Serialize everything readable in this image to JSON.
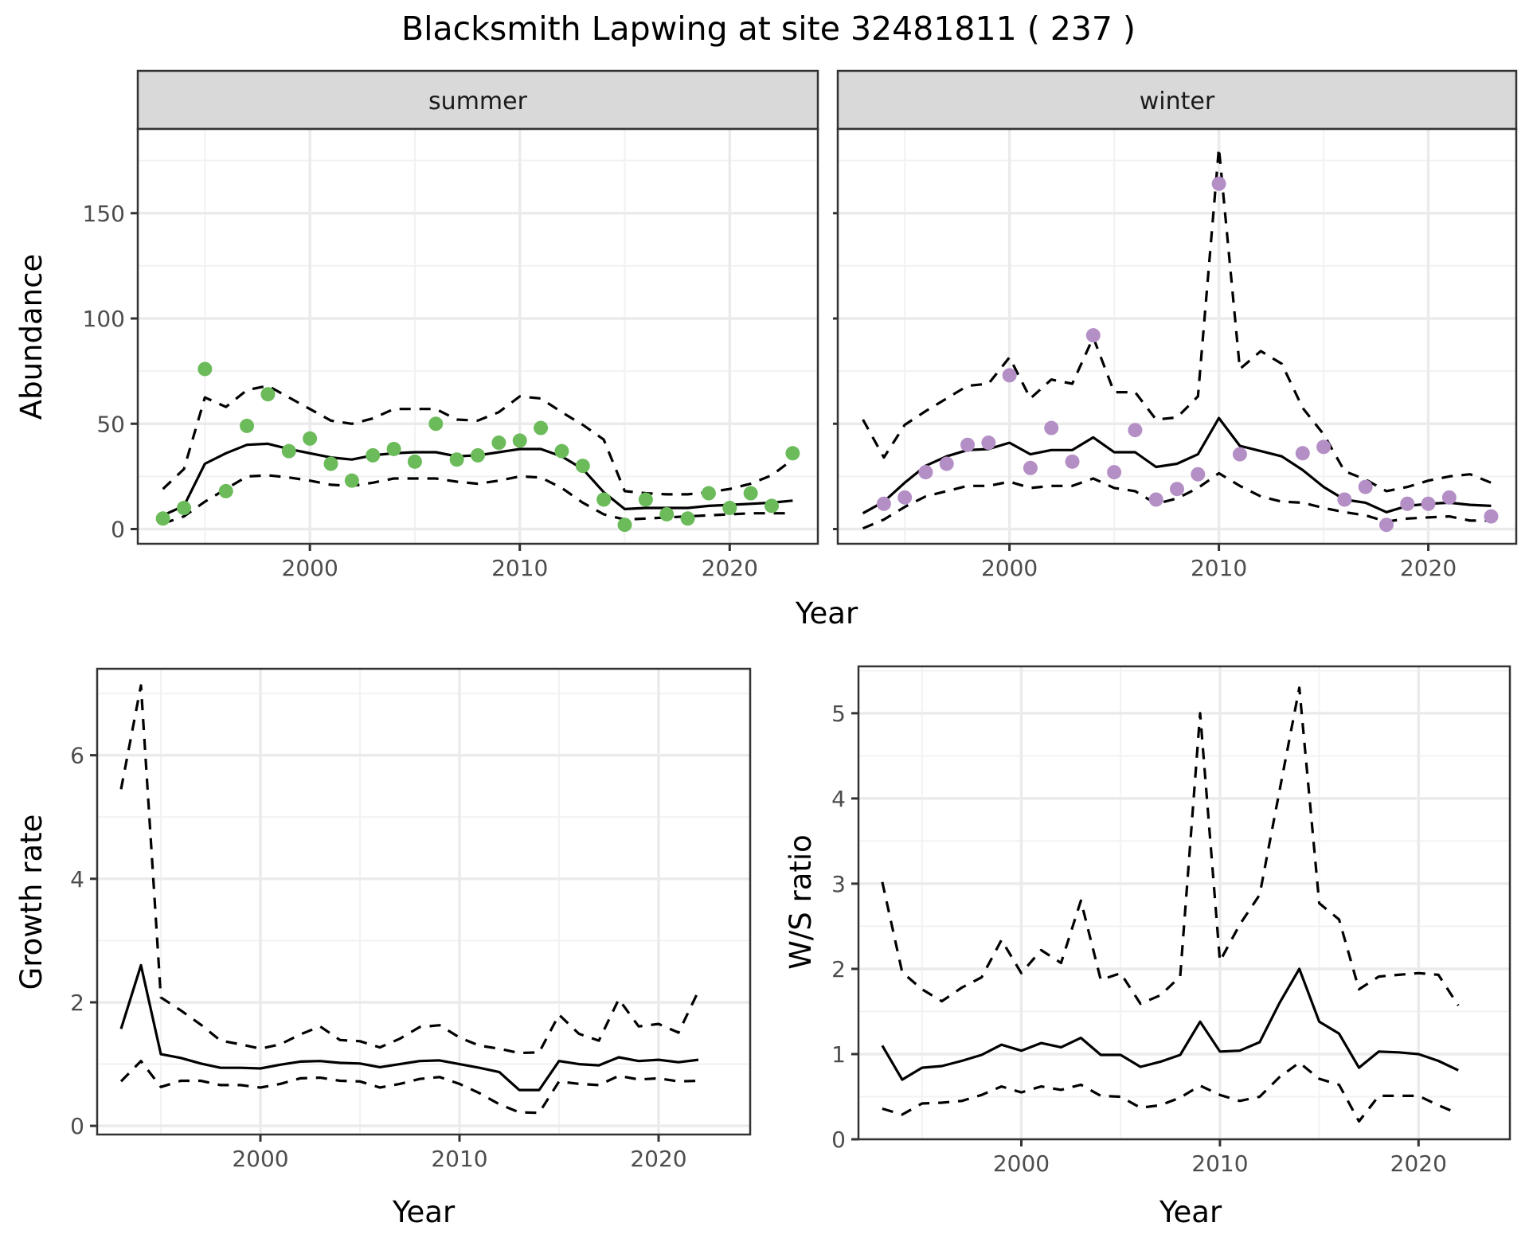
{
  "chart_data": {
    "title": "Blacksmith Lapwing at site 32481811 ( 237 )",
    "panels": [
      {
        "id": "abundance",
        "type": "scatter+line",
        "ylabel": "Abundance",
        "xlabel": "Year",
        "facets": [
          "summer",
          "winter"
        ],
        "xlim": [
          1991.8,
          2024.2
        ],
        "ylim": [
          -7,
          190
        ],
        "xticks": [
          2000,
          2010,
          2020
        ],
        "yticks": [
          0,
          50,
          100,
          150
        ],
        "grid": true,
        "series": [
          {
            "facet": "summer",
            "point_color": "#6bbb5b",
            "observed": {
              "x": [
                1993,
                1994,
                1995,
                1996,
                1997,
                1998,
                1999,
                2000,
                2001,
                2002,
                2003,
                2004,
                2005,
                2006,
                2007,
                2008,
                2009,
                2010,
                2011,
                2012,
                2013,
                2014,
                2015,
                2016,
                2017,
                2018,
                2019,
                2020,
                2021,
                2022,
                2023
              ],
              "y": [
                5,
                10,
                76,
                18,
                49,
                64,
                37,
                43,
                31,
                23,
                35,
                38,
                32,
                50,
                33,
                35,
                41,
                42,
                48,
                37,
                30,
                14,
                2,
                14,
                7,
                5,
                17,
                10,
                17,
                11,
                36
              ]
            },
            "fitted": {
              "x": [
                1993,
                1994,
                1995,
                1996,
                1997,
                1998,
                1999,
                2000,
                2001,
                2002,
                2003,
                2004,
                2005,
                2006,
                2007,
                2008,
                2009,
                2010,
                2011,
                2012,
                2013,
                2014,
                2015,
                2016,
                2017,
                2018,
                2019,
                2020,
                2021,
                2022,
                2023
              ],
              "mean": [
                6.5,
                11,
                31,
                36,
                40,
                40.5,
                38,
                36,
                34,
                33,
                35,
                36,
                36.5,
                36.5,
                34.5,
                35,
                36.5,
                38,
                38,
                34.5,
                28.5,
                17.5,
                9.5,
                10,
                10,
                10,
                11,
                11.5,
                12,
                12.5,
                13.5
              ],
              "upper": [
                19,
                28.5,
                62.5,
                58,
                66,
                68,
                62.5,
                57,
                51.5,
                50,
                52.5,
                57,
                57,
                57,
                52,
                51.5,
                55.5,
                63,
                62,
                55.5,
                49.5,
                42.5,
                18,
                17,
                16.5,
                16.5,
                17.5,
                19,
                21.5,
                25.5,
                33
              ],
              "lower": [
                2.6,
                6,
                13,
                19,
                25,
                25.5,
                24.5,
                23,
                21,
                20.5,
                22,
                24,
                24,
                24,
                22.5,
                21.5,
                23,
                25,
                24.5,
                19.5,
                12.5,
                7,
                4.5,
                5,
                5.5,
                6,
                6.5,
                7,
                7.5,
                7.5,
                7.5
              ]
            }
          },
          {
            "facet": "winter",
            "point_color": "#b48fc6",
            "observed": {
              "x": [
                1994,
                1995,
                1996,
                1997,
                1998,
                1999,
                2000,
                2001,
                2002,
                2003,
                2004,
                2005,
                2006,
                2007,
                2008,
                2009,
                2010,
                2011,
                2014,
                2015,
                2016,
                2017,
                2018,
                2019,
                2020,
                2021,
                2023
              ],
              "y": [
                12,
                15,
                27,
                31,
                40,
                41,
                73,
                29,
                48,
                32,
                92,
                27,
                47,
                14,
                19,
                26,
                164,
                35.5,
                36,
                39,
                14,
                20,
                2,
                12,
                12,
                15,
                6
              ]
            },
            "fitted": {
              "x": [
                1993,
                1994,
                1995,
                1996,
                1997,
                1998,
                1999,
                2000,
                2001,
                2002,
                2003,
                2004,
                2005,
                2006,
                2007,
                2008,
                2009,
                2010,
                2011,
                2012,
                2013,
                2014,
                2015,
                2016,
                2017,
                2018,
                2019,
                2020,
                2021,
                2022,
                2023
              ],
              "mean": [
                7.5,
                13,
                22,
                30,
                34.5,
                37.5,
                38,
                41,
                35.5,
                37.5,
                37.5,
                43.5,
                36.5,
                36.5,
                29.5,
                31,
                35.5,
                52.7,
                39.5,
                37,
                34.5,
                28,
                20,
                14,
                12.5,
                8,
                11,
                12,
                12.5,
                11.5,
                11
              ],
              "upper": [
                52,
                34,
                49.5,
                56,
                62,
                68,
                69,
                81.5,
                62,
                71,
                69,
                91,
                65,
                65,
                52,
                53,
                63,
                181,
                76,
                84.5,
                78.5,
                57.5,
                45,
                27.5,
                23.5,
                18,
                20,
                23,
                25,
                26,
                22
              ],
              "lower": [
                0.3,
                4.5,
                10.5,
                15.5,
                18,
                20.5,
                20.5,
                22.5,
                19.5,
                20.5,
                20.5,
                24,
                19.5,
                18,
                12,
                14.5,
                19.5,
                26.5,
                20.5,
                15.5,
                13,
                12.5,
                10,
                8,
                6.5,
                3.5,
                5,
                5.5,
                6,
                4,
                4
              ]
            }
          }
        ]
      },
      {
        "id": "growth",
        "type": "line",
        "ylabel": "Growth rate",
        "xlabel": "Year",
        "xlim": [
          1991.8,
          2024.6
        ],
        "ylim": [
          -0.14,
          7.4
        ],
        "xticks": [
          2000,
          2010,
          2020
        ],
        "yticks": [
          0,
          2,
          4,
          6
        ],
        "grid": true,
        "x": [
          1993,
          1994,
          1995,
          1996,
          1997,
          1998,
          1999,
          2000,
          2001,
          2002,
          2003,
          2004,
          2005,
          2006,
          2007,
          2008,
          2009,
          2010,
          2011,
          2012,
          2013,
          2014,
          2015,
          2016,
          2017,
          2018,
          2019,
          2020,
          2021,
          2022
        ],
        "mean": [
          1.57,
          2.6,
          1.16,
          1.1,
          1.01,
          0.94,
          0.94,
          0.93,
          0.99,
          1.04,
          1.05,
          1.02,
          1.01,
          0.95,
          1.0,
          1.05,
          1.06,
          1.0,
          0.94,
          0.87,
          0.58,
          0.58,
          1.05,
          1.0,
          0.98,
          1.11,
          1.05,
          1.07,
          1.03,
          1.07
        ],
        "upper": [
          5.45,
          7.13,
          2.08,
          1.87,
          1.64,
          1.38,
          1.32,
          1.25,
          1.32,
          1.48,
          1.61,
          1.39,
          1.37,
          1.27,
          1.41,
          1.6,
          1.63,
          1.43,
          1.3,
          1.25,
          1.18,
          1.19,
          1.8,
          1.49,
          1.38,
          2.05,
          1.61,
          1.65,
          1.51,
          2.18
        ],
        "lower": [
          0.72,
          1.05,
          0.63,
          0.73,
          0.73,
          0.66,
          0.66,
          0.62,
          0.68,
          0.77,
          0.78,
          0.73,
          0.72,
          0.62,
          0.68,
          0.76,
          0.79,
          0.68,
          0.53,
          0.35,
          0.22,
          0.21,
          0.72,
          0.68,
          0.66,
          0.81,
          0.75,
          0.77,
          0.72,
          0.73
        ]
      },
      {
        "id": "ratio",
        "type": "line",
        "ylabel": "W/S ratio",
        "xlabel": "Year",
        "xlim": [
          1991.8,
          2024.6
        ],
        "ylim": [
          0,
          5.55
        ],
        "xticks": [
          2000,
          2010,
          2020
        ],
        "yticks": [
          0,
          1,
          2,
          3,
          4,
          5
        ],
        "grid": true,
        "x": [
          1993,
          1994,
          1995,
          1996,
          1997,
          1998,
          1999,
          2000,
          2001,
          2002,
          2003,
          2004,
          2005,
          2006,
          2007,
          2008,
          2009,
          2010,
          2011,
          2012,
          2013,
          2014,
          2015,
          2016,
          2017,
          2018,
          2019,
          2020,
          2021,
          2022
        ],
        "mean": [
          1.1,
          0.7,
          0.84,
          0.86,
          0.92,
          0.99,
          1.11,
          1.04,
          1.13,
          1.08,
          1.19,
          0.99,
          0.99,
          0.85,
          0.91,
          0.99,
          1.38,
          1.03,
          1.04,
          1.14,
          1.6,
          2.0,
          1.38,
          1.24,
          0.84,
          1.03,
          1.02,
          1.0,
          0.92,
          0.81
        ],
        "upper": [
          3.02,
          1.96,
          1.76,
          1.62,
          1.78,
          1.9,
          2.34,
          1.95,
          2.22,
          2.07,
          2.8,
          1.87,
          1.95,
          1.59,
          1.69,
          1.91,
          5.0,
          2.09,
          2.52,
          2.87,
          4.09,
          5.3,
          2.77,
          2.58,
          1.76,
          1.91,
          1.93,
          1.95,
          1.93,
          1.57
        ],
        "lower": [
          0.36,
          0.29,
          0.42,
          0.43,
          0.45,
          0.52,
          0.62,
          0.55,
          0.62,
          0.58,
          0.64,
          0.51,
          0.5,
          0.37,
          0.4,
          0.49,
          0.63,
          0.52,
          0.45,
          0.5,
          0.73,
          0.9,
          0.71,
          0.64,
          0.21,
          0.51,
          0.51,
          0.51,
          0.4,
          0.3
        ]
      }
    ]
  },
  "labels": {
    "title": "Blacksmith Lapwing at site 32481811 ( 237 )",
    "strip_summer": "summer",
    "strip_winter": "winter",
    "top_xlabel": "Year",
    "top_ylabel": "Abundance",
    "growth_xlabel": "Year",
    "growth_ylabel": "Growth rate",
    "ratio_xlabel": "Year",
    "ratio_ylabel": "W/S ratio"
  },
  "colors": {
    "summer_points": "#6bbb5b",
    "winter_points": "#b48fc6",
    "line": "#000000",
    "strip_fill": "#d9d9d9",
    "grid_major": "#ebebeb",
    "grid_minor": "#f2f2f2",
    "border": "#333333"
  }
}
